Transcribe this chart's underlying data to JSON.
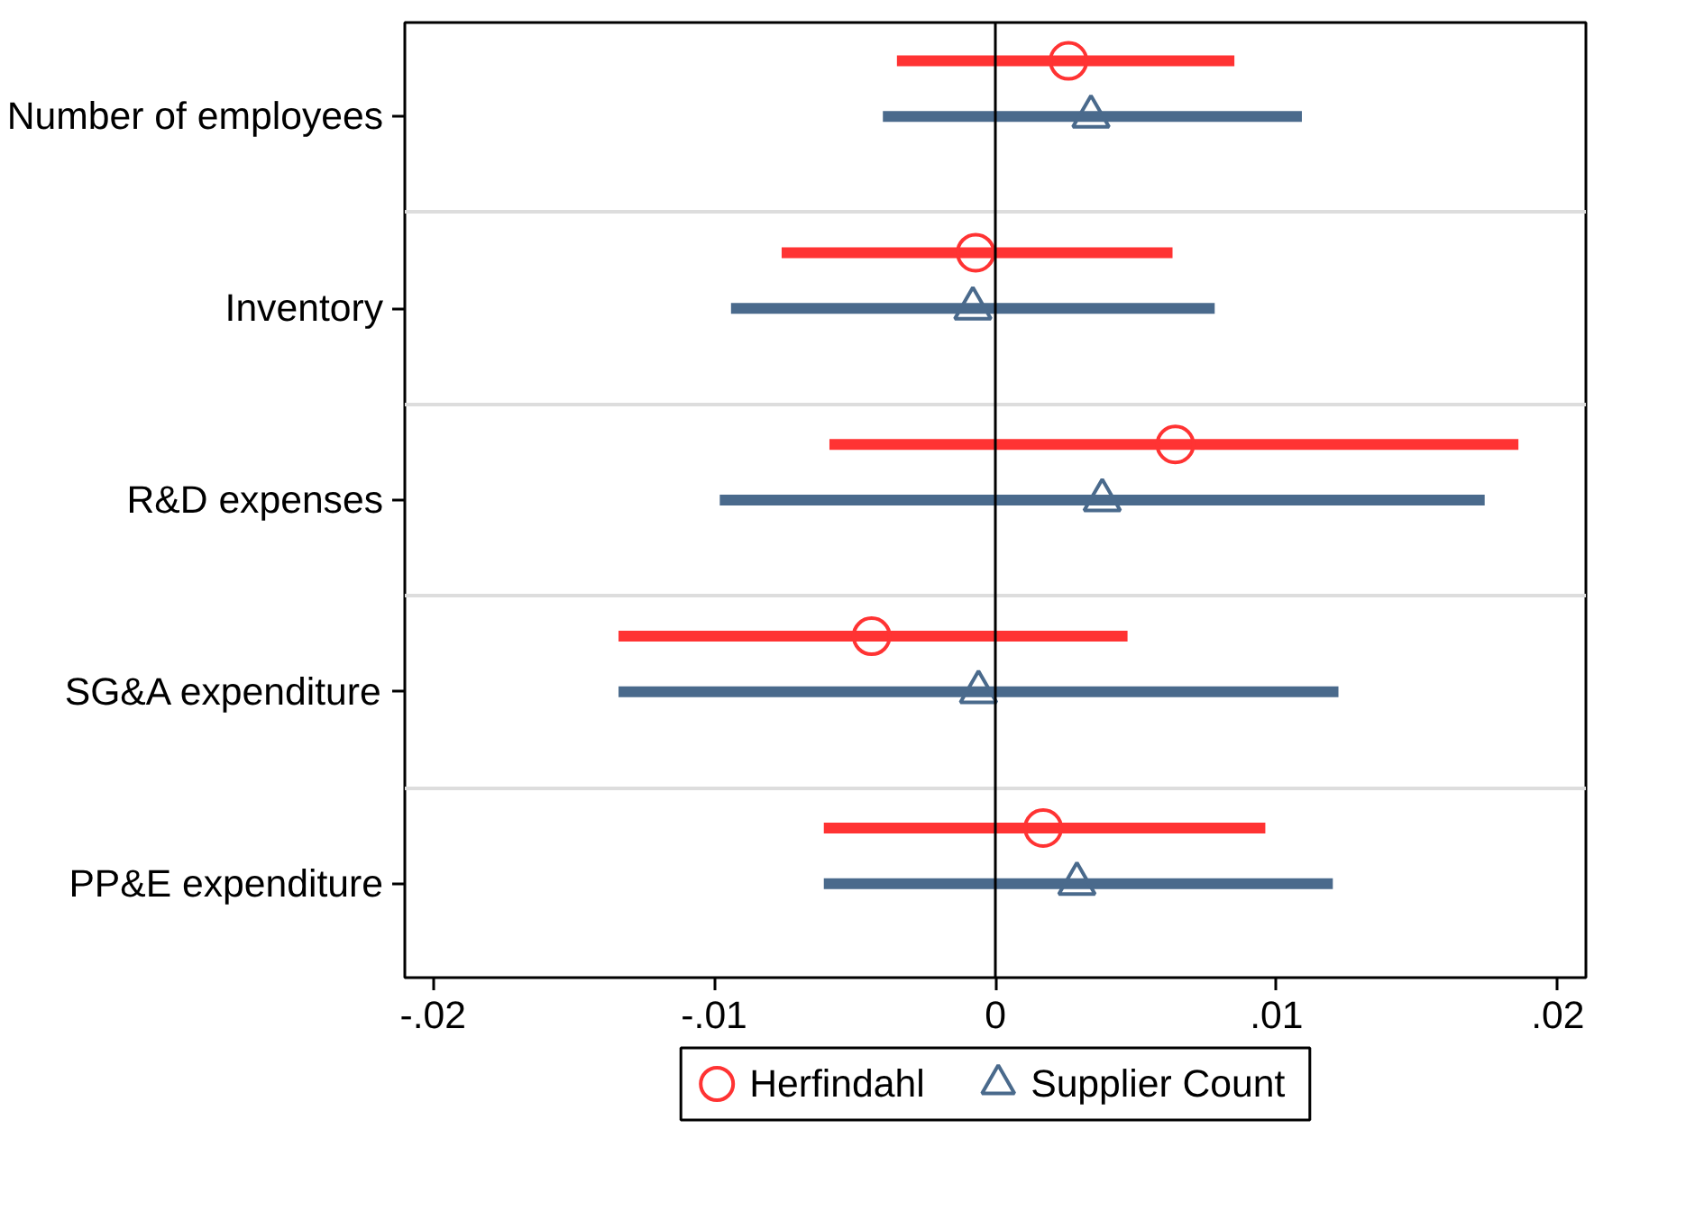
{
  "chart_data": {
    "type": "scatter",
    "orientation": "horizontal",
    "categories": [
      "Number of employees",
      "Inventory",
      "R&D expenses",
      "SG&A expenditure",
      "PP&E expenditure"
    ],
    "series": [
      {
        "name": "Herfindahl",
        "color": "#ff3333",
        "marker": "circle",
        "values": [
          0.0026,
          -0.0007,
          0.0064,
          -0.0044,
          0.0017
        ],
        "errors": [
          [
            -0.0035,
            0.0085
          ],
          [
            -0.0076,
            0.0063
          ],
          [
            -0.0059,
            0.0186
          ],
          [
            -0.0134,
            0.0047
          ],
          [
            -0.0061,
            0.0096
          ]
        ]
      },
      {
        "name": "Supplier Count",
        "color": "#4a6a8c",
        "marker": "triangle",
        "values": [
          0.0034,
          -0.0008,
          0.0038,
          -0.0006,
          0.0029
        ],
        "errors": [
          [
            -0.004,
            0.0109
          ],
          [
            -0.0094,
            0.0078
          ],
          [
            -0.0098,
            0.0174
          ],
          [
            -0.0134,
            0.0122
          ],
          [
            -0.0061,
            0.012
          ]
        ]
      }
    ],
    "xlim": [
      -0.021,
      0.021
    ],
    "xticks": [
      {
        "value": -0.02,
        "label": "-.02"
      },
      {
        "value": -0.01,
        "label": "-.01"
      },
      0,
      {
        "value": 0.01,
        "label": ".01"
      },
      {
        "value": 0.02,
        "label": ".02"
      }
    ],
    "ref_lines": [
      {
        "axis": "x",
        "value": 0,
        "color": "#000000"
      }
    ],
    "grid": "y",
    "legend": "bottom"
  }
}
